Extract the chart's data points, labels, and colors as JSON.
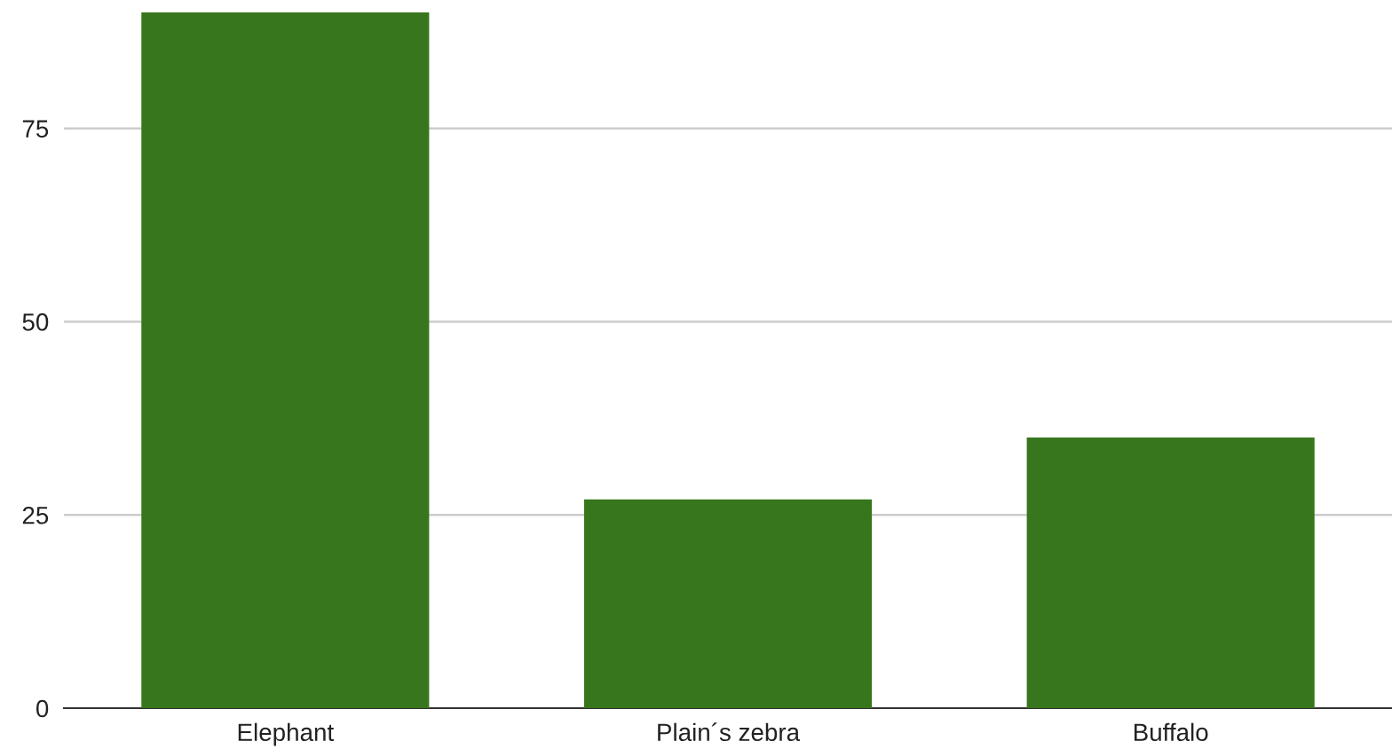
{
  "chart_data": {
    "type": "bar",
    "categories": [
      "Elephant",
      "Plain´s zebra",
      "Buffalo"
    ],
    "values": [
      90,
      27,
      35
    ],
    "color": "#38761d",
    "ylim": [
      0,
      90
    ],
    "yticks": [
      0,
      25,
      50,
      75
    ],
    "grid": "y"
  }
}
